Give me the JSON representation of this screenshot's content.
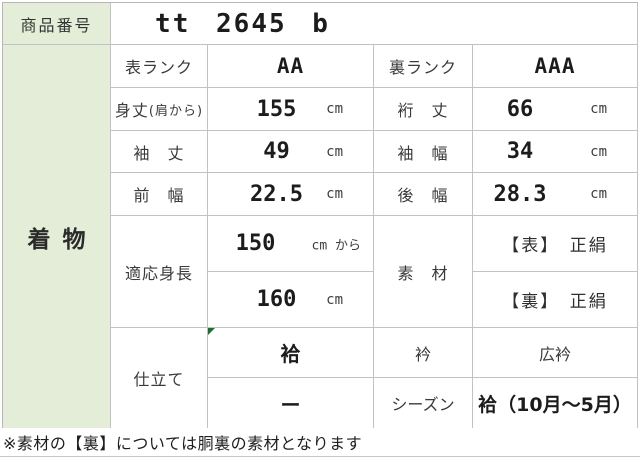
{
  "colors": {
    "header_green_bg": "#e3edd8",
    "grid_border": "#c2c2c2",
    "marker_green": "#1e6b34"
  },
  "product": {
    "number_label": "商品番号",
    "number_value": "tt 2645 b",
    "category": "着物"
  },
  "ranks": {
    "front_label": "表ランク",
    "front_value": "AA",
    "back_label": "裏ランク",
    "back_value": "AAA"
  },
  "measurements": {
    "body_length": {
      "label": "身丈",
      "label_sub": "(肩から)",
      "value": "155",
      "unit": "cm"
    },
    "yuki": {
      "label": "裄　丈",
      "value": "66",
      "unit": "cm"
    },
    "sleeve_length": {
      "label": "袖　丈",
      "value": "49",
      "unit": "cm"
    },
    "sleeve_width": {
      "label": "袖　幅",
      "value": "34",
      "unit": "cm"
    },
    "front_width": {
      "label": "前　幅",
      "value": "22.5",
      "unit": "cm"
    },
    "back_width": {
      "label": "後　幅",
      "value": "28.3",
      "unit": "cm"
    },
    "height": {
      "label": "適応身長",
      "min_value": "150",
      "min_unit": "cm から",
      "max_value": "160",
      "max_unit": "cm"
    }
  },
  "material": {
    "label": "素　材",
    "front": "【表】　正絹",
    "back": "【裏】　正絹"
  },
  "tailoring": {
    "label": "仕立て",
    "value_top": "袷",
    "value_bottom": "ー"
  },
  "collar": {
    "label": "衿",
    "value": "広衿"
  },
  "season": {
    "label": "シーズン",
    "value": "袷（10月〜5月）"
  },
  "footnote": "※素材の【裏】については胴裏の素材となります"
}
